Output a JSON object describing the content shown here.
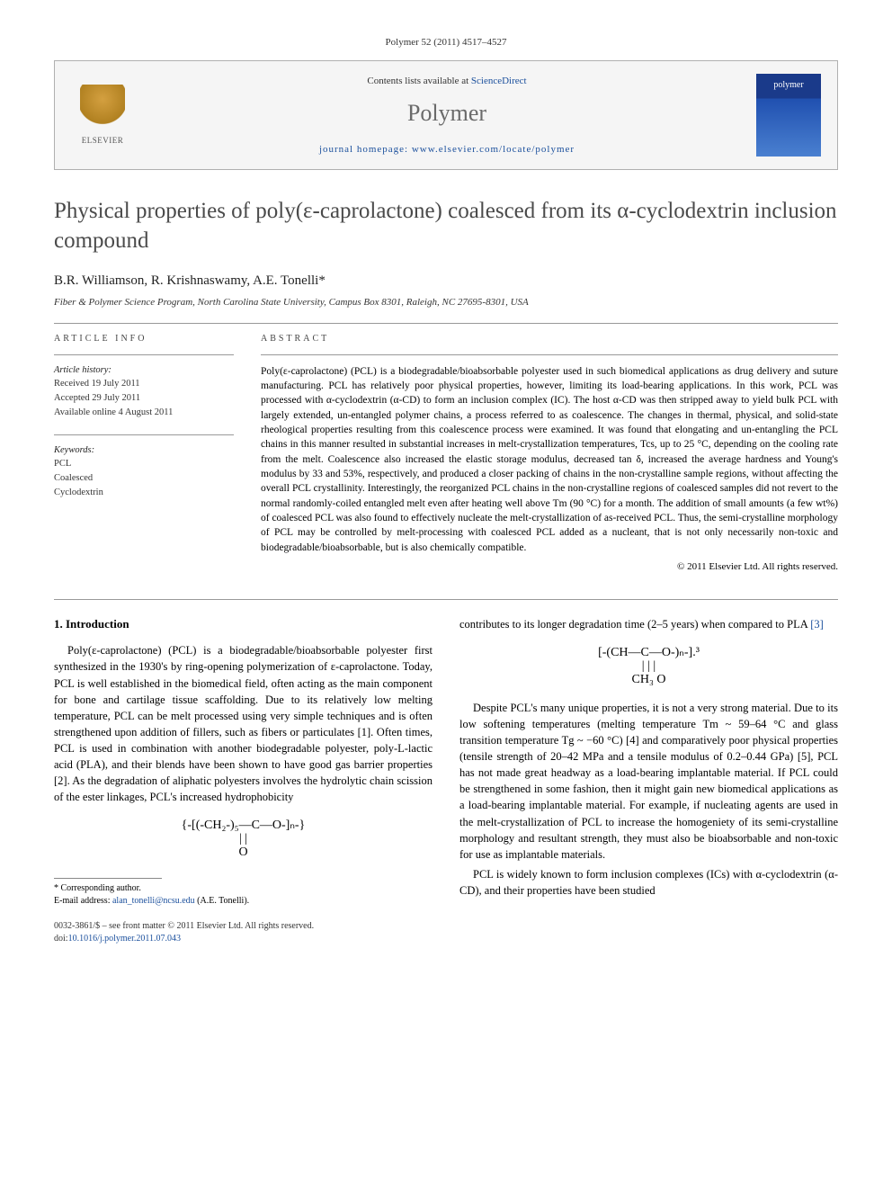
{
  "citation": "Polymer 52 (2011) 4517–4527",
  "header": {
    "contents_prefix": "Contents lists available at ",
    "contents_link": "ScienceDirect",
    "journal": "Polymer",
    "homepage_label": "journal homepage: ",
    "homepage_url": "www.elsevier.com/locate/polymer",
    "publisher_label": "ELSEVIER",
    "cover_label": "polymer"
  },
  "title": "Physical properties of poly(ε-caprolactone) coalesced from its α-cyclodextrin inclusion compound",
  "authors": "B.R. Williamson, R. Krishnaswamy, A.E. Tonelli*",
  "affiliation": "Fiber & Polymer Science Program, North Carolina State University, Campus Box 8301, Raleigh, NC 27695-8301, USA",
  "info": {
    "heading": "ARTICLE INFO",
    "history_label": "Article history:",
    "received": "Received 19 July 2011",
    "accepted": "Accepted 29 July 2011",
    "online": "Available online 4 August 2011",
    "keywords_label": "Keywords:",
    "kw1": "PCL",
    "kw2": "Coalesced",
    "kw3": "Cyclodextrin"
  },
  "abstract": {
    "heading": "ABSTRACT",
    "text": "Poly(ε-caprolactone) (PCL) is a biodegradable/bioabsorbable polyester used in such biomedical applications as drug delivery and suture manufacturing. PCL has relatively poor physical properties, however, limiting its load-bearing applications. In this work, PCL was processed with α-cyclodextrin (α-CD) to form an inclusion complex (IC). The host α-CD was then stripped away to yield bulk PCL with largely extended, un-entangled polymer chains, a process referred to as coalescence. The changes in thermal, physical, and solid-state rheological properties resulting from this coalescence process were examined. It was found that elongating and un-entangling the PCL chains in this manner resulted in substantial increases in melt-crystallization temperatures, Tcs, up to 25 °C, depending on the cooling rate from the melt. Coalescence also increased the elastic storage modulus, decreased tan δ, increased the average hardness and Young's modulus by 33 and 53%, respectively, and produced a closer packing of chains in the non-crystalline sample regions, without affecting the overall PCL crystallinity. Interestingly, the reorganized PCL chains in the non-crystalline regions of coalesced samples did not revert to the normal randomly-coiled entangled melt even after heating well above Tm (90 °C) for a month. The addition of small amounts (a few wt%) of coalesced PCL was also found to effectively nucleate the melt-crystallization of as-received PCL. Thus, the semi-crystalline morphology of PCL may be controlled by melt-processing with coalesced PCL added as a nucleant, that is not only necessarily non-toxic and biodegradable/bioabsorbable, but is also chemically compatible.",
    "copyright": "© 2011 Elsevier Ltd. All rights reserved."
  },
  "body": {
    "section1_heading": "1. Introduction",
    "left_p1": "Poly(ε-caprolactone) (PCL) is a biodegradable/bioabsorbable polyester first synthesized in the 1930's by ring-opening polymerization of ε-caprolactone. Today, PCL is well established in the biomedical field, often acting as the main component for bone and cartilage tissue scaffolding. Due to its relatively low melting temperature, PCL can be melt processed using very simple techniques and is often strengthened upon addition of fillers, such as fibers or particulates [1]. Often times, PCL is used in combination with another biodegradable polyester, poly-L-lactic acid (PLA), and their blends have been shown to have good gas barrier properties [2]. As the degradation of aliphatic polyesters involves the hydrolytic chain scission of the ester linkages, PCL's increased hydrophobicity",
    "left_formula_l1": "{-[(-CH₂-)₅—C—O-]ₙ-}",
    "left_formula_l2": "| |",
    "left_formula_l3": "O",
    "right_p1_prefix": "contributes to its longer degradation time (2–5 years) when compared to PLA ",
    "right_p1_ref": "[3]",
    "right_formula_l1": "[-(CH—C—O-)ₙ-].³",
    "right_formula_l2": "|    | |",
    "right_formula_l3": "CH₃  O",
    "right_p2": "Despite PCL's many unique properties, it is not a very strong material. Due to its low softening temperatures (melting temperature Tm ~ 59–64 °C and glass transition temperature Tg ~ −60 °C) [4] and comparatively poor physical properties (tensile strength of 20–42 MPa and a tensile modulus of 0.2–0.44 GPa) [5], PCL has not made great headway as a load-bearing implantable material. If PCL could be strengthened in some fashion, then it might gain new biomedical applications as a load-bearing implantable material. For example, if nucleating agents are used in the melt-crystallization of PCL to increase the homogeniety of its semi-crystalline morphology and resultant strength, they must also be bioabsorbable and non-toxic for use as implantable materials.",
    "right_p3": "PCL is widely known to form inclusion complexes (ICs) with α-cyclodextrin (α-CD), and their properties have been studied"
  },
  "footnote": {
    "corr_label": "* Corresponding author.",
    "email_label": "E-mail address: ",
    "email": "alan_tonelli@ncsu.edu",
    "email_suffix": " (A.E. Tonelli)."
  },
  "footer": {
    "line1": "0032-3861/$ – see front matter © 2011 Elsevier Ltd. All rights reserved.",
    "doi_label": "doi:",
    "doi": "10.1016/j.polymer.2011.07.043"
  },
  "colors": {
    "link": "#1a4f9c",
    "title_gray": "#4a4a4a",
    "border": "#b0b0b0"
  }
}
